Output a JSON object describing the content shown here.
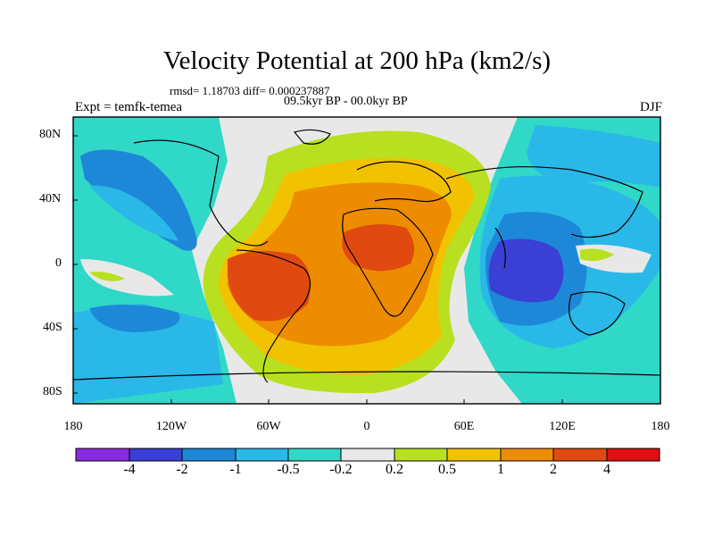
{
  "title": "Velocity Potential at 200 hPa (km2/s)",
  "stats": "rmsd= 1.18703 diff= 0.000237887",
  "experiment": "Expt = temfk-temea",
  "difference_label": "09.5kyr BP - 00.0kyr BP",
  "season": "DJF",
  "lat_ticks": [
    "80N",
    "40N",
    "0",
    "40S",
    "80S"
  ],
  "lon_ticks": [
    "180",
    "120W",
    "60W",
    "0",
    "60E",
    "120E",
    "180"
  ],
  "colorbar": {
    "labels": [
      "-4",
      "-2",
      "-1",
      "-0.5",
      "-0.2",
      "0.2",
      "0.5",
      "1",
      "2",
      "4"
    ],
    "colors": [
      "#8A2BE2",
      "#3A3FD6",
      "#1E88D8",
      "#29B8E8",
      "#30D8C8",
      "#E8E8E8",
      "#B8E020",
      "#F2C200",
      "#EE8C00",
      "#E04A10",
      "#E01010"
    ]
  }
}
